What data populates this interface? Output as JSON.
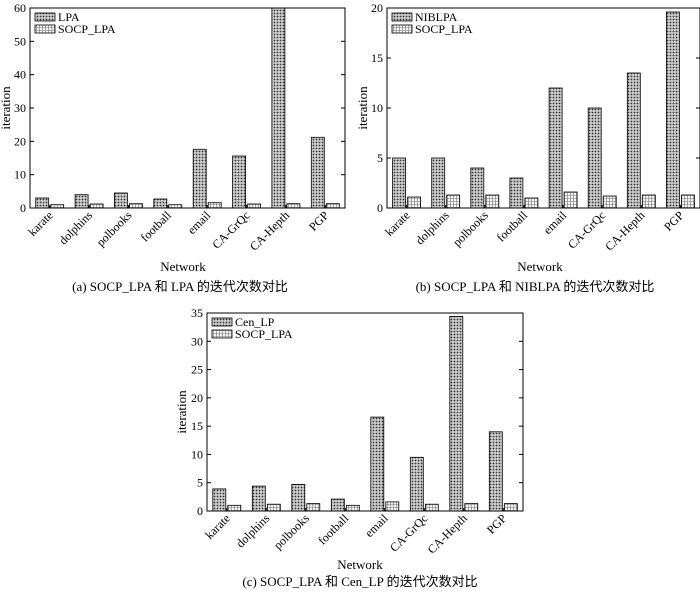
{
  "chart_data": [
    {
      "type": "bar",
      "caption": "(a) SOCP_LPA 和 LPA 的迭代次数对比",
      "xlabel": "Network",
      "ylabel": "iteration",
      "ylim": [
        0,
        60
      ],
      "yticks": [
        0,
        10,
        20,
        30,
        40,
        50,
        60
      ],
      "grid": false,
      "legend_position": "top-left",
      "categories": [
        "karate",
        "dolphins",
        "polbooks",
        "football",
        "email",
        "CA-GrQc",
        "CA-Hepth",
        "PGP"
      ],
      "series": [
        {
          "name": "LPA",
          "values": [
            3,
            4,
            4.5,
            2.7,
            17.6,
            15.6,
            60,
            21.2
          ]
        },
        {
          "name": "SOCP_LPA",
          "values": [
            1,
            1.2,
            1.3,
            1.0,
            1.6,
            1.2,
            1.3,
            1.3
          ]
        }
      ]
    },
    {
      "type": "bar",
      "caption": "(b) SOCP_LPA 和 NIBLPA 的迭代次数对比",
      "xlabel": "Network",
      "ylabel": "iteration",
      "ylim": [
        0,
        20
      ],
      "yticks": [
        0,
        5,
        10,
        15,
        20
      ],
      "grid": false,
      "legend_position": "top-left",
      "categories": [
        "karate",
        "dolphins",
        "polbooks",
        "football",
        "email",
        "CA-GrQc",
        "CA-Hepth",
        "PGP"
      ],
      "series": [
        {
          "name": "NIBLPA",
          "values": [
            5,
            5,
            4,
            3,
            12,
            10,
            13.5,
            19.6
          ]
        },
        {
          "name": "SOCP_LPA",
          "values": [
            1.1,
            1.3,
            1.3,
            1.0,
            1.6,
            1.2,
            1.3,
            1.3
          ]
        }
      ]
    },
    {
      "type": "bar",
      "caption": "(c) SOCP_LPA 和 Cen_LP 的迭代次数对比",
      "xlabel": "Network",
      "ylabel": "iteration",
      "ylim": [
        0,
        35
      ],
      "yticks": [
        0,
        5,
        10,
        15,
        20,
        25,
        30,
        35
      ],
      "grid": false,
      "legend_position": "top-left",
      "categories": [
        "karate",
        "dolphins",
        "polbooks",
        "football",
        "email",
        "CA-GrQc",
        "CA-Hepth",
        "PGP"
      ],
      "series": [
        {
          "name": "Cen_LP",
          "values": [
            3.9,
            4.4,
            4.7,
            2.1,
            16.6,
            9.5,
            34.4,
            14
          ]
        },
        {
          "name": "SOCP_LPA",
          "values": [
            1,
            1.2,
            1.3,
            1.0,
            1.6,
            1.2,
            1.3,
            1.3
          ]
        }
      ]
    }
  ],
  "colors": {
    "series1_fill": "#cfcfcf",
    "series1_dot": "#3a3a3a",
    "series2_fill": "#f2f2f2",
    "series2_line": "#555555"
  }
}
